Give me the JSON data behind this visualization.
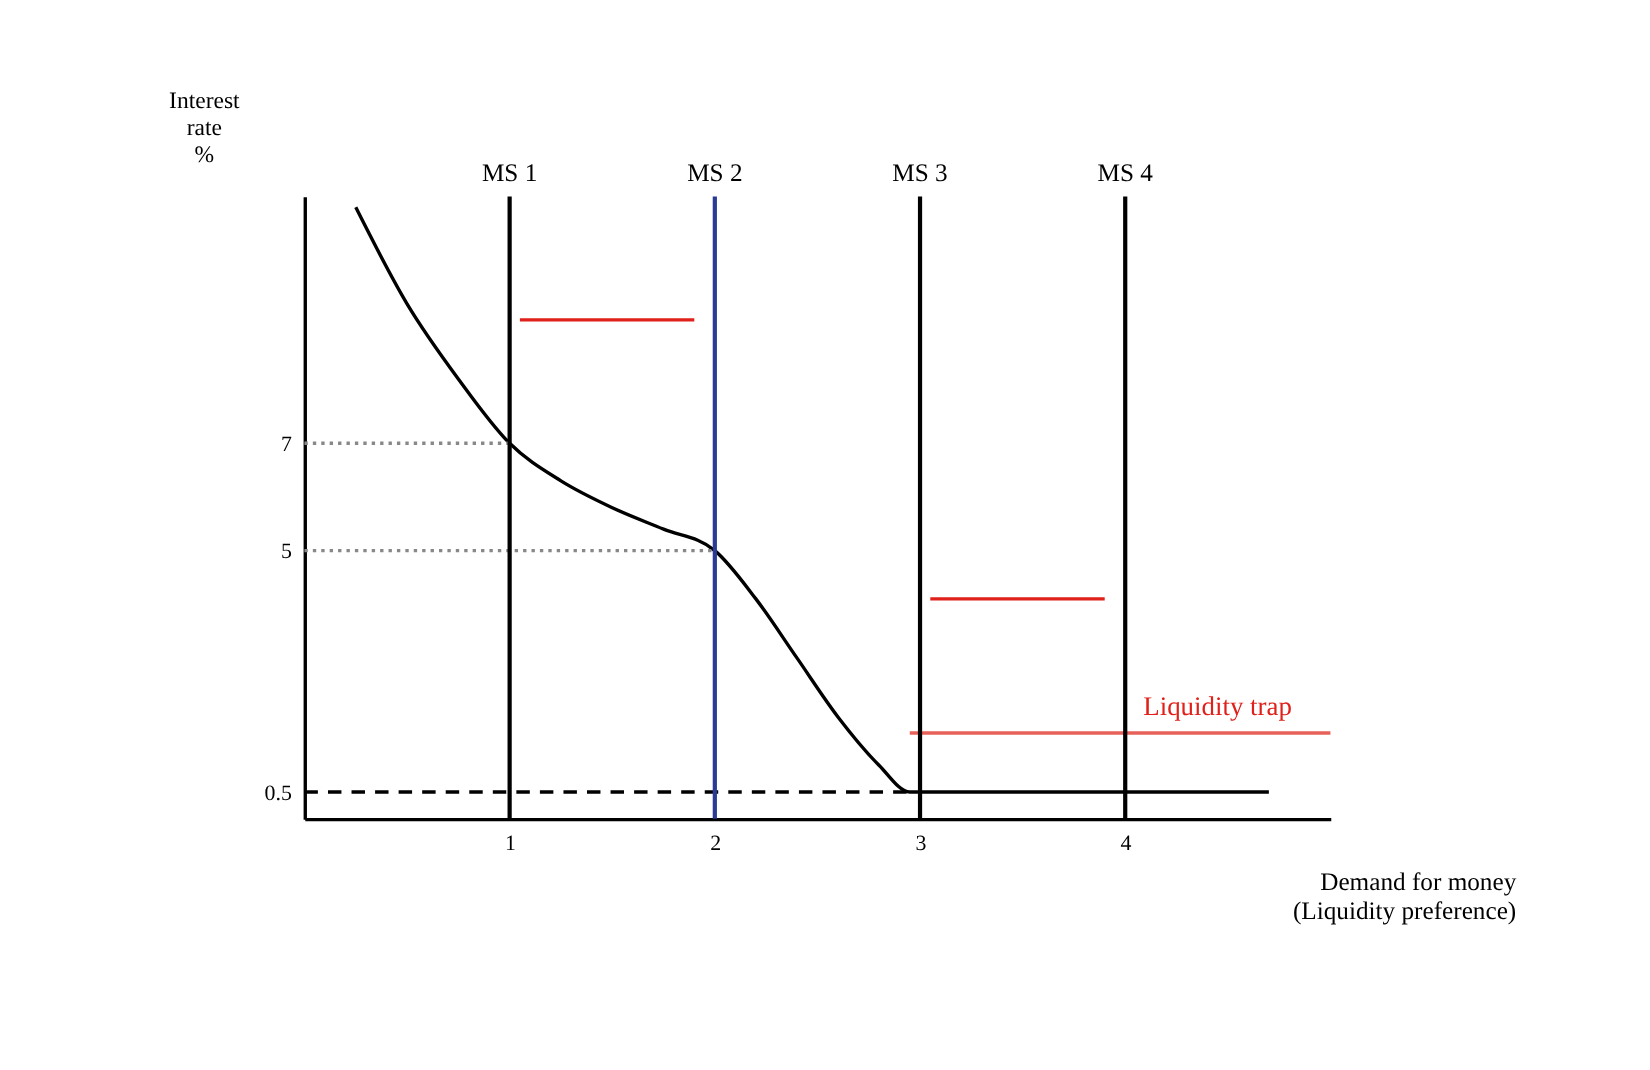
{
  "chart_data": {
    "type": "line",
    "xlabel": "Demand for money\n(Liquidity preference)",
    "ylabel": "Interest\nrate\n%",
    "xlim": [
      0,
      5
    ],
    "ylim": [
      0,
      11.6
    ],
    "xticks": [
      1,
      2,
      3,
      4
    ],
    "yticks": [
      0.5,
      5,
      7
    ],
    "grid": false,
    "marker": "none",
    "series": [
      {
        "color": "#000000",
        "x": [
          0.25,
          0.5,
          0.75,
          1,
          1.25,
          1.5,
          1.75,
          2,
          2.2,
          2.4,
          2.6,
          2.8,
          2.95,
          3.5,
          4,
          4.7
        ],
        "values": [
          11.4,
          9.6,
          8.2,
          7,
          6.3,
          5.8,
          5.4,
          5,
          4.1,
          3.0,
          1.9,
          1.0,
          0.5,
          0.5,
          0.5,
          0.5
        ]
      },
      {
        "color": "#888888",
        "line_style": "dotted",
        "x": [
          0,
          1
        ],
        "values": [
          7,
          7
        ]
      },
      {
        "color": "#888888",
        "line_style": "dotted",
        "x": [
          0,
          2
        ],
        "values": [
          5,
          5
        ]
      },
      {
        "color": "#000000",
        "line_style": "dashed",
        "x": [
          0,
          2.95
        ],
        "values": [
          0.5,
          0.5
        ]
      },
      {
        "color": "#e0201a",
        "x": [
          1.05,
          1.9
        ],
        "values": [
          9.3,
          9.3
        ]
      },
      {
        "color": "#e0201a",
        "x": [
          3.05,
          3.9
        ],
        "values": [
          4.1,
          4.1
        ]
      },
      {
        "color": "#e8605a",
        "x": [
          2.95,
          5
        ],
        "values": [
          1.6,
          1.6
        ]
      }
    ],
    "ref_lines": [
      {
        "axis": "x",
        "value": 1,
        "label": "MS 1",
        "color": "#000000"
      },
      {
        "axis": "x",
        "value": 2,
        "label": "MS 2",
        "color": "#2b3a94"
      },
      {
        "axis": "x",
        "value": 3,
        "label": "MS 3",
        "color": "#000000"
      },
      {
        "axis": "x",
        "value": 4,
        "label": "MS 4",
        "color": "#000000"
      }
    ],
    "annotations": [
      {
        "text": "Liquidity trap",
        "x": 4.45,
        "y": 1.6
      }
    ]
  }
}
